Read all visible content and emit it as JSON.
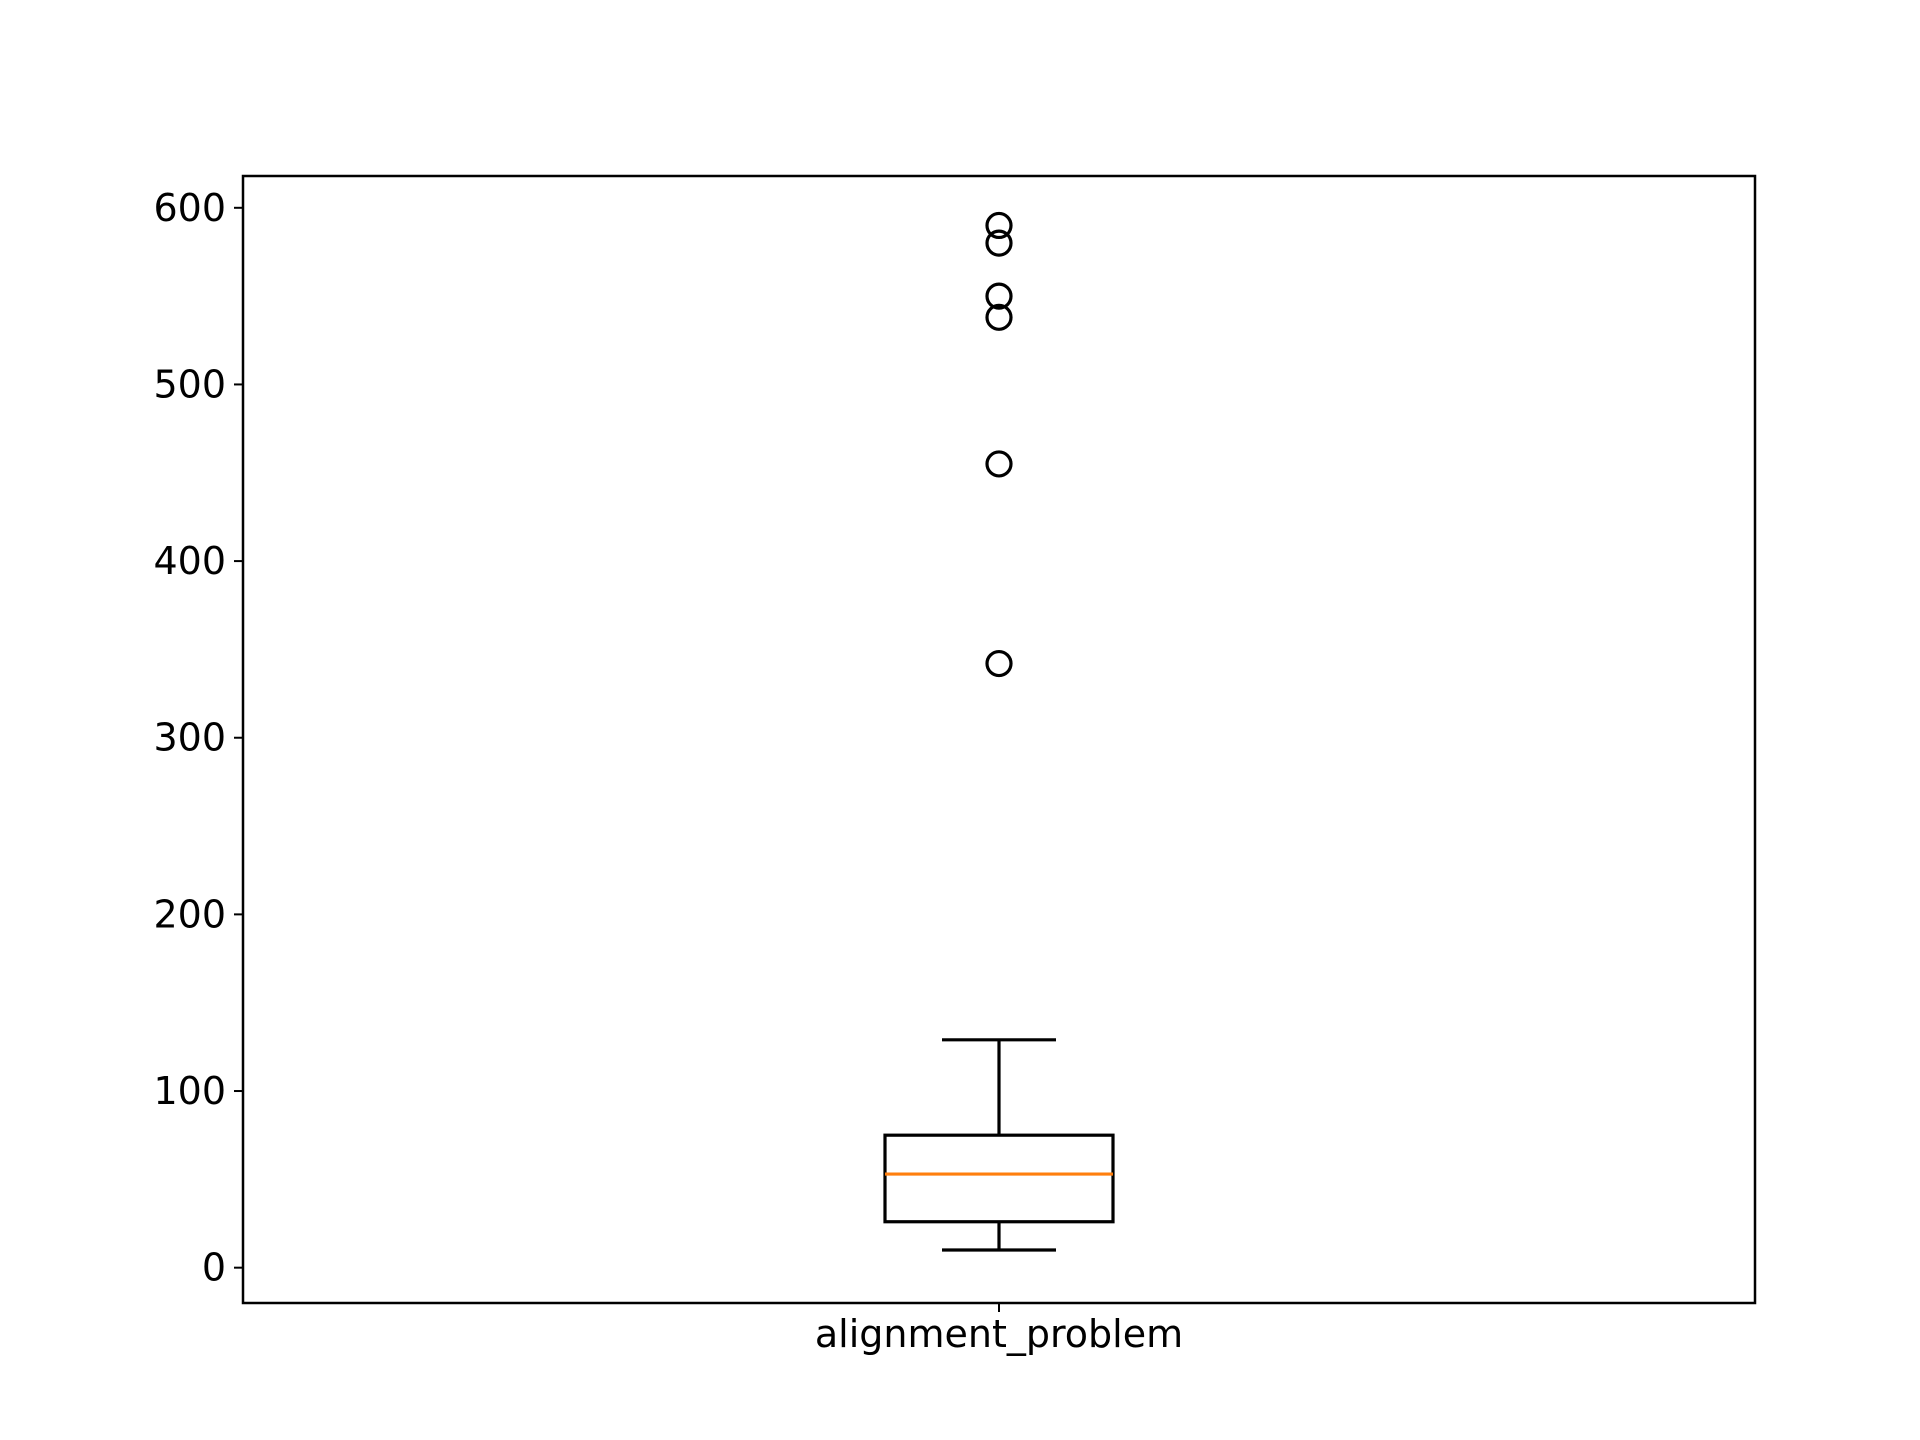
{
  "chart_data": {
    "type": "box",
    "categories": [
      "alignment_problem"
    ],
    "series": [
      {
        "whisker_low": 10,
        "q1": 26,
        "median": 53,
        "q3": 75,
        "whisker_high": 129,
        "outliers": [
          342,
          455,
          538,
          550,
          580,
          590
        ]
      }
    ],
    "title": "",
    "xlabel": "",
    "ylabel": "",
    "ylim": [
      -20,
      618
    ],
    "yticks": [
      0,
      100,
      200,
      300,
      400,
      500,
      600
    ],
    "grid": false,
    "colors": {
      "box": "#000000",
      "median": "#ff7f0e",
      "outlier": "#000000",
      "background": "#ffffff"
    }
  }
}
